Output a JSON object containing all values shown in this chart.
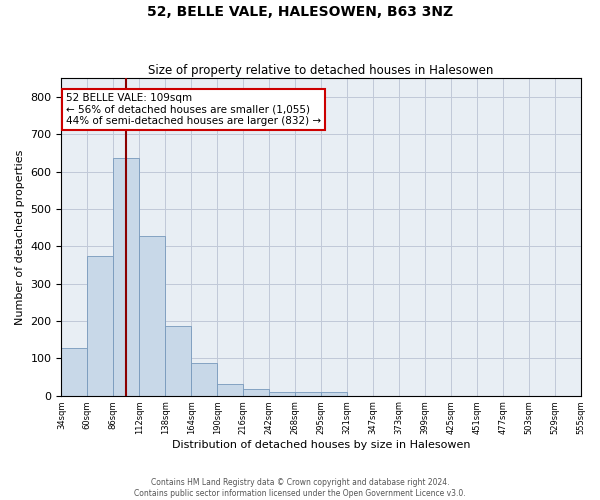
{
  "title": "52, BELLE VALE, HALESOWEN, B63 3NZ",
  "subtitle": "Size of property relative to detached houses in Halesowen",
  "xlabel": "Distribution of detached houses by size in Halesowen",
  "ylabel": "Number of detached properties",
  "bar_values": [
    128,
    375,
    635,
    428,
    185,
    88,
    32,
    17,
    9,
    9,
    9,
    0,
    0,
    0,
    0,
    0,
    0,
    0,
    0,
    0
  ],
  "bar_labels": [
    "34sqm",
    "60sqm",
    "86sqm",
    "112sqm",
    "138sqm",
    "164sqm",
    "190sqm",
    "216sqm",
    "242sqm",
    "268sqm",
    "295sqm",
    "321sqm",
    "347sqm",
    "373sqm",
    "399sqm",
    "425sqm",
    "451sqm",
    "477sqm",
    "503sqm",
    "529sqm",
    "555sqm"
  ],
  "bar_color": "#c8d8e8",
  "bar_edge_color": "#7799bb",
  "ylim": [
    0,
    850
  ],
  "yticks": [
    0,
    100,
    200,
    300,
    400,
    500,
    600,
    700,
    800
  ],
  "vline_x": 2.5,
  "annotation_text": "52 BELLE VALE: 109sqm\n← 56% of detached houses are smaller (1,055)\n44% of semi-detached houses are larger (832) →",
  "grid_color": "#c0c8d8",
  "background_color": "#e8eef4",
  "footer_line1": "Contains HM Land Registry data © Crown copyright and database right 2024.",
  "footer_line2": "Contains public sector information licensed under the Open Government Licence v3.0."
}
